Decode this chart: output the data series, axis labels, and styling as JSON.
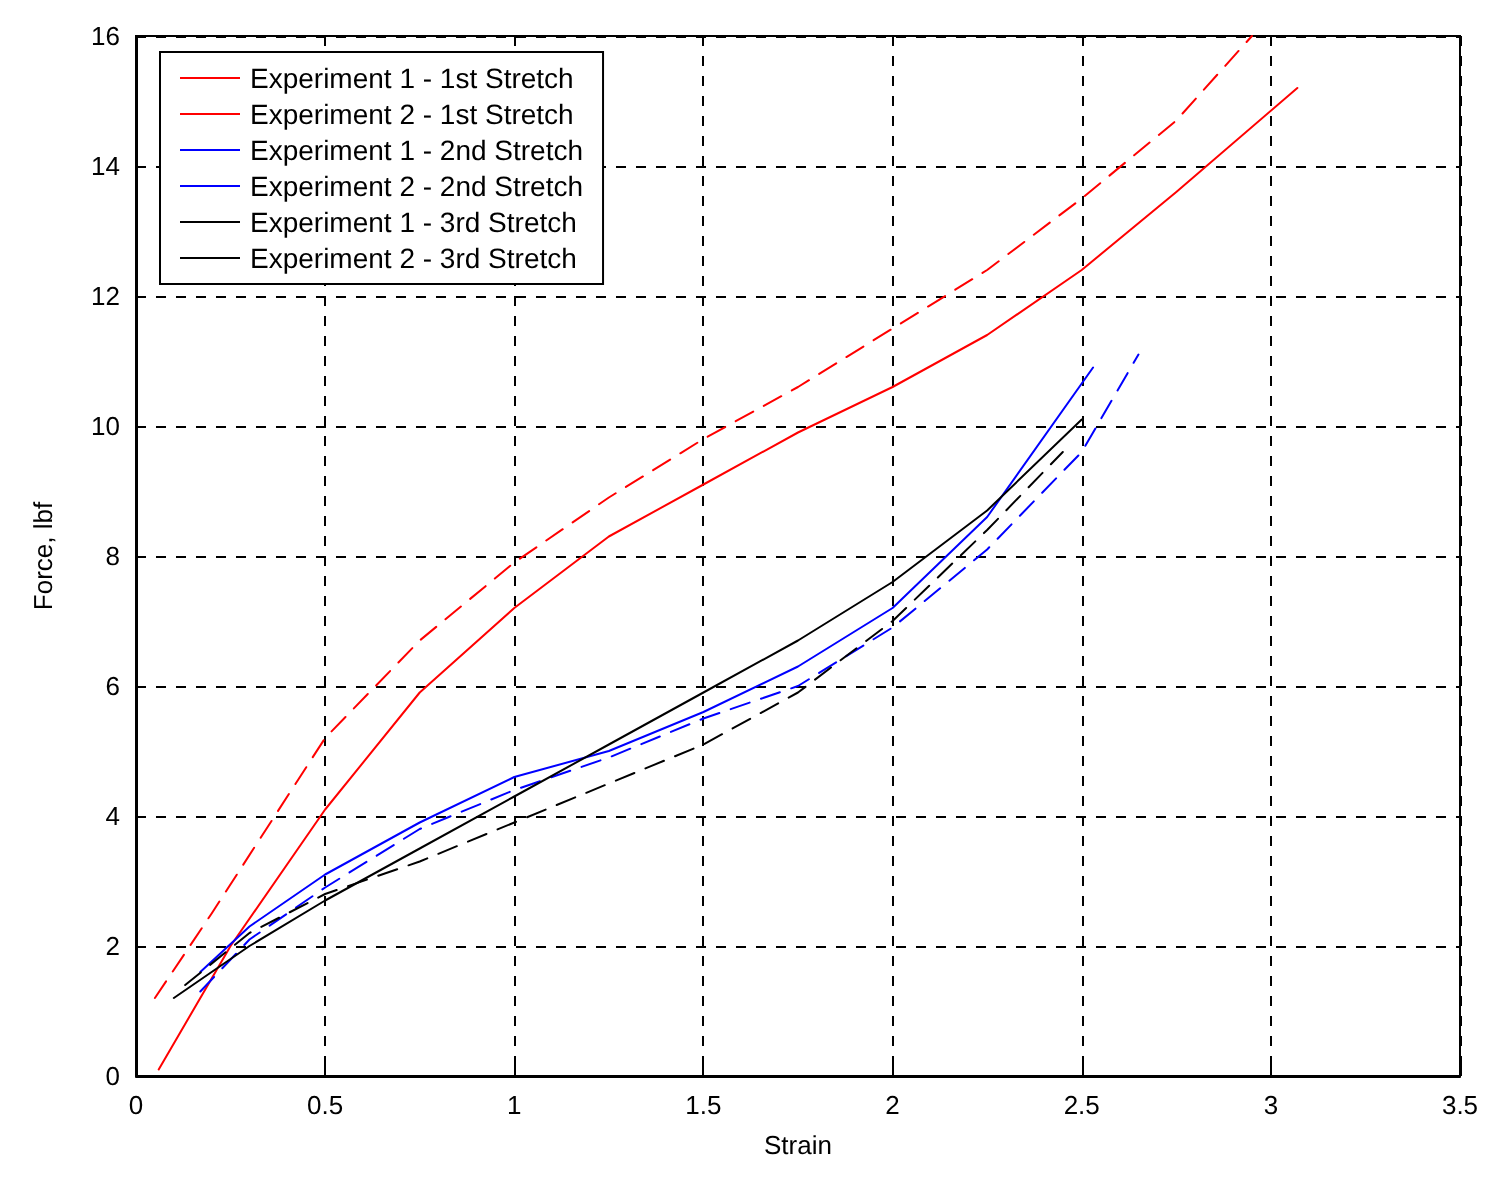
{
  "chart_data": {
    "type": "line",
    "xlabel": "Strain",
    "ylabel": "Force, lbf",
    "xlim": [
      0,
      3.5
    ],
    "xticks": [
      0,
      0.5,
      1,
      1.5,
      2,
      2.5,
      3,
      3.5
    ],
    "ylim": [
      0,
      16
    ],
    "yticks": [
      0,
      2,
      4,
      6,
      8,
      10,
      12,
      14,
      16
    ],
    "grid": true,
    "legend": "top left",
    "marker": "none",
    "series": [
      {
        "name": "Experiment 1 - 1st Stretch",
        "color": "#ff0000",
        "line_style": "solid",
        "x": [
          0.06,
          0.25,
          0.5,
          0.75,
          1,
          1.25,
          1.5,
          1.75,
          2,
          2.25,
          2.5,
          2.75,
          3.07
        ],
        "values": [
          0.1,
          2,
          4.1,
          5.9,
          7.2,
          8.3,
          9.1,
          9.9,
          10.6,
          11.4,
          12.4,
          13.6,
          15.2
        ]
      },
      {
        "name": "Experiment 2 - 1st Stretch",
        "color": "#ff0000",
        "line_style": "dashed",
        "x": [
          0.05,
          0.2,
          0.5,
          0.75,
          1,
          1.25,
          1.5,
          1.75,
          2,
          2.25,
          2.5,
          2.75,
          2.95
        ],
        "values": [
          1.2,
          2.5,
          5.2,
          6.7,
          7.9,
          8.9,
          9.8,
          10.6,
          11.5,
          12.4,
          13.5,
          14.7,
          16
        ]
      },
      {
        "name": "Experiment 1 - 2nd Stretch",
        "color": "#0000ff",
        "line_style": "solid",
        "x": [
          0.17,
          0.3,
          0.5,
          0.75,
          1,
          1.25,
          1.5,
          1.75,
          2,
          2.25,
          2.53
        ],
        "values": [
          1.6,
          2.3,
          3.1,
          3.9,
          4.6,
          5.0,
          5.6,
          6.3,
          7.2,
          8.6,
          10.9
        ]
      },
      {
        "name": "Experiment 2 - 2nd Stretch",
        "color": "#0000ff",
        "line_style": "dashed",
        "x": [
          0.17,
          0.3,
          0.5,
          0.75,
          1,
          1.25,
          1.5,
          1.75,
          2,
          2.25,
          2.5,
          2.65
        ],
        "values": [
          1.3,
          2.1,
          2.9,
          3.8,
          4.4,
          4.9,
          5.5,
          6.0,
          6.9,
          8.1,
          9.6,
          11.1
        ]
      },
      {
        "name": "Experiment 1 - 3rd Stretch",
        "color": "#000000",
        "line_style": "solid",
        "x": [
          0.1,
          0.3,
          0.5,
          0.75,
          1,
          1.25,
          1.5,
          1.75,
          2,
          2.25,
          2.5
        ],
        "values": [
          1.2,
          2.0,
          2.7,
          3.5,
          4.3,
          5.1,
          5.9,
          6.7,
          7.6,
          8.7,
          10.1
        ]
      },
      {
        "name": "Experiment 2 - 3rd Stretch",
        "color": "#000000",
        "line_style": "dashed",
        "x": [
          0.13,
          0.3,
          0.5,
          0.75,
          1,
          1.25,
          1.5,
          1.75,
          2,
          2.25,
          2.45
        ],
        "values": [
          1.4,
          2.2,
          2.8,
          3.3,
          3.9,
          4.5,
          5.1,
          5.9,
          7.0,
          8.4,
          9.6
        ]
      }
    ]
  }
}
